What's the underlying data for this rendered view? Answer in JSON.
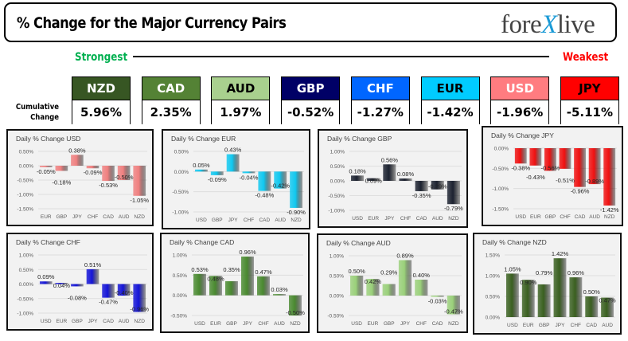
{
  "header": {
    "title": "% Change for the Major Currency Pairs",
    "logo_text": "forexlive"
  },
  "strength": {
    "strongest_label": "Strongest",
    "weakest_label": "Weakest",
    "cumulative_label": "Cumulative Change"
  },
  "currencies": [
    {
      "code": "NZD",
      "value": "5.96%",
      "bg": "#375623",
      "fg": "#ffffff"
    },
    {
      "code": "CAD",
      "value": "2.35%",
      "bg": "#548235",
      "fg": "#ffffff"
    },
    {
      "code": "AUD",
      "value": "1.97%",
      "bg": "#a9d08e",
      "fg": "#000000"
    },
    {
      "code": "GBP",
      "value": "-0.52%",
      "bg": "#000066",
      "fg": "#ffffff"
    },
    {
      "code": "CHF",
      "value": "-1.27%",
      "bg": "#0066ff",
      "fg": "#ffffff"
    },
    {
      "code": "EUR",
      "value": "-1.42%",
      "bg": "#00ccff",
      "fg": "#000000"
    },
    {
      "code": "USD",
      "value": "-1.96%",
      "bg": "#ff7c80",
      "fg": "#ffffff"
    },
    {
      "code": "JPY",
      "value": "-5.11%",
      "bg": "#ff0000",
      "fg": "#000000"
    }
  ],
  "chart_data": [
    {
      "type": "bar",
      "title": "Daily % Change USD",
      "categories": [
        "EUR",
        "GBP",
        "JPY",
        "CHF",
        "CAD",
        "AUD",
        "NZD"
      ],
      "values": [
        -0.05,
        -0.18,
        0.38,
        -0.09,
        -0.53,
        -0.5,
        -1.05
      ],
      "labels": [
        "-0.05%",
        "-0.18%",
        "0.38%",
        "-0.09%",
        "-0.53%",
        "-0.50%",
        "-1.05%"
      ],
      "ylim": [
        -1.5,
        0.5
      ],
      "yticks": [
        "0.50%",
        "0.00%",
        "-0.50%",
        "-1.00%",
        "-1.50%"
      ],
      "color": "#f08080",
      "grid": true
    },
    {
      "type": "bar",
      "title": "Daily % Change EUR",
      "categories": [
        "USD",
        "GBP",
        "JPY",
        "CHF",
        "CAD",
        "AUD",
        "NZD"
      ],
      "values": [
        0.05,
        -0.09,
        0.43,
        -0.04,
        -0.48,
        -0.42,
        -0.9
      ],
      "labels": [
        "0.05%",
        "-0.09%",
        "0.43%",
        "-0.04%",
        "-0.48%",
        "-0.42%",
        "-0.90%"
      ],
      "ylim": [
        -1.0,
        0.5
      ],
      "yticks": [
        "0.50%",
        "0.00%",
        "-0.50%",
        "-1.00%"
      ],
      "color": "#10c8f0",
      "grid": true
    },
    {
      "type": "bar",
      "title": "Daily % Change GBP",
      "categories": [
        "USD",
        "EUR",
        "JPY",
        "CHF",
        "CAD",
        "AUD",
        "NZD"
      ],
      "values": [
        0.18,
        0.09,
        0.56,
        0.08,
        -0.35,
        -0.29,
        -0.79
      ],
      "labels": [
        "0.18%",
        "0.09%",
        "0.56%",
        "0.08%",
        "-0.35%",
        "-0.29%",
        "-0.79%"
      ],
      "ylim": [
        -1.0,
        1.0
      ],
      "yticks": [
        "1.00%",
        "0.50%",
        "0.00%",
        "-0.50%",
        "-1.00%"
      ],
      "color": "#1c2230",
      "grid": true
    },
    {
      "type": "bar",
      "title": "Daily % Change JPY",
      "categories": [
        "USD",
        "EUR",
        "GBP",
        "CHF",
        "CAD",
        "AUD",
        "NZD"
      ],
      "values": [
        -0.38,
        -0.43,
        -0.56,
        -0.51,
        -0.96,
        -0.89,
        -1.42
      ],
      "labels": [
        "-0.38%",
        "-0.43%",
        "-0.56%",
        "-0.51%",
        "-0.96%",
        "-0.89%",
        "-1.42%"
      ],
      "ylim": [
        -1.5,
        0.0
      ],
      "yticks": [
        "0.00%",
        "-0.50%",
        "-1.00%",
        "-1.50%"
      ],
      "color": "#f01010",
      "grid": true
    },
    {
      "type": "bar",
      "title": "Daily % Change CHF",
      "categories": [
        "USD",
        "EUR",
        "GBP",
        "JPY",
        "CAD",
        "AUD",
        "NZD"
      ],
      "values": [
        0.09,
        0.04,
        -0.08,
        0.51,
        -0.47,
        -0.4,
        -0.96
      ],
      "labels": [
        "0.09%",
        "0.04%",
        "-0.08%",
        "0.51%",
        "-0.47%",
        "-0.40%",
        "-0.96%"
      ],
      "ylim": [
        -1.0,
        1.0
      ],
      "yticks": [
        "1.00%",
        "0.50%",
        "0.00%",
        "-0.50%",
        "-1.00%"
      ],
      "color": "#1414d8",
      "grid": true
    },
    {
      "type": "bar",
      "title": "Daily % Change CAD",
      "categories": [
        "USD",
        "EUR",
        "GBP",
        "JPY",
        "CHF",
        "AUD",
        "NZD"
      ],
      "values": [
        0.53,
        0.48,
        0.35,
        0.96,
        0.47,
        0.03,
        -0.5
      ],
      "labels": [
        "0.53%",
        "0.48%",
        "0.35%",
        "0.96%",
        "0.47%",
        "0.03%",
        "-0.50%"
      ],
      "ylim": [
        -0.5,
        1.0
      ],
      "yticks": [
        "1.00%",
        "0.50%",
        "0.00%",
        "-0.50%"
      ],
      "color": "#4a8a30",
      "grid": true
    },
    {
      "type": "bar",
      "title": "Daily % Change AUD",
      "categories": [
        "USD",
        "EUR",
        "GBP",
        "JPY",
        "CHF",
        "CAD",
        "NZD"
      ],
      "values": [
        0.5,
        0.42,
        0.29,
        0.89,
        0.4,
        -0.03,
        -0.47
      ],
      "labels": [
        "0.50%",
        "0.42%",
        "0.29%",
        "0.89%",
        "0.40%",
        "-0.03%",
        "-0.47%"
      ],
      "ylim": [
        -0.5,
        1.0
      ],
      "yticks": [
        "1.00%",
        "0.50%",
        "0.00%",
        "-0.50%"
      ],
      "color": "#9ad07a",
      "grid": true
    },
    {
      "type": "bar",
      "title": "Daily % Change NZD",
      "categories": [
        "USD",
        "EUR",
        "GBP",
        "JPY",
        "CHF",
        "CAD",
        "AUD"
      ],
      "values": [
        1.05,
        0.9,
        0.79,
        1.42,
        0.96,
        0.5,
        0.47
      ],
      "labels": [
        "1.05%",
        "0.90%",
        "0.79%",
        "1.42%",
        "0.96%",
        "0.50%",
        "0.47%"
      ],
      "ylim": [
        0.0,
        1.5
      ],
      "yticks": [
        "1.50%",
        "1.00%",
        "0.50%",
        "0.00%"
      ],
      "color": "#3a6020",
      "grid": true
    }
  ]
}
